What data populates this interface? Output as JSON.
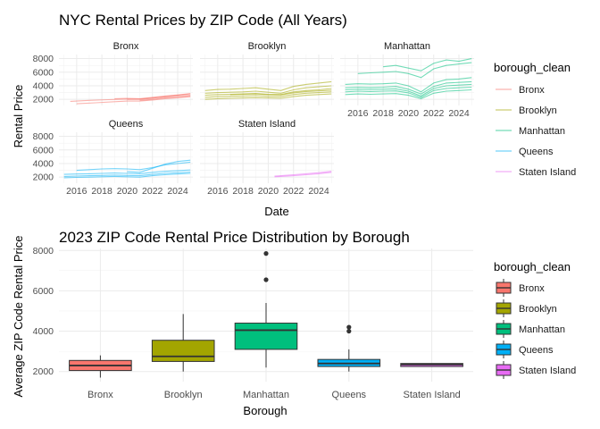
{
  "chart_data": [
    {
      "type": "line",
      "title": "NYC Rental Prices by ZIP Code (All Years)",
      "xlabel": "Date",
      "ylabel": "Rental Price",
      "xlim": [
        2014.6,
        2025.2
      ],
      "ylim": [
        1100,
        8600
      ],
      "x_ticks": [
        2016,
        2018,
        2020,
        2022,
        2024
      ],
      "y_ticks": [
        2000,
        4000,
        6000,
        8000
      ],
      "legend": {
        "title": "borough_clean",
        "position": "right",
        "items": [
          "Bronx",
          "Brooklyn",
          "Manhattan",
          "Queens",
          "Staten Island"
        ]
      },
      "facets": [
        {
          "name": "Bronx",
          "color": "#F8766D",
          "series": [
            {
              "x": [
                2015.5,
                2017,
                2018.5,
                2020,
                2021,
                2022,
                2023,
                2024,
                2025
              ],
              "y": [
                1700,
                1850,
                1950,
                2050,
                2000,
                2150,
                2400,
                2600,
                2800
              ]
            },
            {
              "x": [
                2016,
                2017.5,
                2019,
                2020,
                2021,
                2022,
                2023,
                2024,
                2025
              ],
              "y": [
                1350,
                1500,
                1650,
                1750,
                1750,
                1900,
                2100,
                2250,
                2400
              ]
            },
            {
              "x": [
                2019,
                2020,
                2021,
                2022,
                2023,
                2024,
                2025
              ],
              "y": [
                2100,
                2150,
                2100,
                2300,
                2500,
                2650,
                2850
              ]
            },
            {
              "x": [
                2020,
                2021,
                2022,
                2023,
                2024,
                2025
              ],
              "y": [
                2000,
                2050,
                2200,
                2350,
                2500,
                2600
              ]
            },
            {
              "x": [
                2021,
                2022,
                2023,
                2024,
                2025
              ],
              "y": [
                1850,
                2000,
                2200,
                2300,
                2450
              ]
            }
          ]
        },
        {
          "name": "Brooklyn",
          "color": "#A3A500",
          "series": [
            {
              "x": [
                2015,
                2016,
                2017,
                2018,
                2019,
                2020,
                2021,
                2022,
                2023,
                2024,
                2025
              ],
              "y": [
                2600,
                2700,
                2750,
                2800,
                2850,
                2750,
                2700,
                3100,
                3300,
                3400,
                3600
              ]
            },
            {
              "x": [
                2015,
                2016,
                2017,
                2018,
                2019,
                2020,
                2021,
                2022,
                2023,
                2024,
                2025
              ],
              "y": [
                3300,
                3450,
                3500,
                3600,
                3700,
                3500,
                3300,
                3900,
                4200,
                4400,
                4600
              ]
            },
            {
              "x": [
                2015,
                2016,
                2017,
                2018,
                2019,
                2020,
                2021,
                2022,
                2023,
                2024,
                2025
              ],
              "y": [
                2000,
                2100,
                2150,
                2200,
                2250,
                2200,
                2150,
                2400,
                2600,
                2700,
                2800
              ]
            },
            {
              "x": [
                2015,
                2016,
                2017,
                2018,
                2019,
                2020,
                2021,
                2022,
                2023,
                2024,
                2025
              ],
              "y": [
                2300,
                2400,
                2450,
                2500,
                2550,
                2450,
                2400,
                2700,
                2900,
                3000,
                3100
              ]
            },
            {
              "x": [
                2015,
                2016,
                2017,
                2018,
                2019,
                2020,
                2021,
                2022,
                2023,
                2024,
                2025
              ],
              "y": [
                2900,
                3000,
                3050,
                3100,
                3200,
                3050,
                2900,
                3400,
                3700,
                3850,
                4000
              ]
            },
            {
              "x": [
                2017,
                2018,
                2019,
                2020,
                2021,
                2022,
                2023,
                2024,
                2025
              ],
              "y": [
                2700,
                2750,
                2800,
                2700,
                2650,
                2950,
                3150,
                3250,
                3350
              ]
            }
          ]
        },
        {
          "name": "Manhattan",
          "color": "#00BF7D",
          "series": [
            {
              "x": [
                2015,
                2016,
                2017,
                2018,
                2019,
                2020,
                2021,
                2022,
                2023,
                2024,
                2025
              ],
              "y": [
                3400,
                3500,
                3450,
                3500,
                3550,
                3200,
                2500,
                3600,
                4000,
                4100,
                4200
              ]
            },
            {
              "x": [
                2015,
                2016,
                2017,
                2018,
                2019,
                2020,
                2021,
                2022,
                2023,
                2024,
                2025
              ],
              "y": [
                4200,
                4300,
                4250,
                4300,
                4400,
                4000,
                3100,
                4400,
                4900,
                5000,
                5200
              ]
            },
            {
              "x": [
                2015,
                2016,
                2017,
                2018,
                2019,
                2020,
                2021,
                2022,
                2023,
                2024,
                2025
              ],
              "y": [
                2700,
                2800,
                2750,
                2800,
                2850,
                2600,
                2100,
                2900,
                3200,
                3300,
                3400
              ]
            },
            {
              "x": [
                2015,
                2016,
                2017,
                2018,
                2019,
                2020,
                2021,
                2022,
                2023,
                2024,
                2025
              ],
              "y": [
                3100,
                3200,
                3150,
                3200,
                3250,
                2950,
                2300,
                3300,
                3600,
                3700,
                3800
              ]
            },
            {
              "x": [
                2015,
                2016,
                2017,
                2018,
                2019,
                2020,
                2021,
                2022,
                2023,
                2024,
                2025
              ],
              "y": [
                3700,
                3800,
                3750,
                3800,
                3900,
                3500,
                2800,
                3900,
                4400,
                4500,
                4600
              ]
            },
            {
              "x": [
                2016,
                2017,
                2018,
                2019,
                2020,
                2021,
                2022,
                2023,
                2024,
                2025
              ],
              "y": [
                5800,
                5900,
                6000,
                6100,
                5800,
                5200,
                6500,
                7000,
                7200,
                7400
              ]
            },
            {
              "x": [
                2018,
                2019,
                2020,
                2021,
                2022,
                2023,
                2024,
                2025
              ],
              "y": [
                6800,
                7000,
                6600,
                6200,
                7300,
                7800,
                7600,
                8000
              ]
            }
          ]
        },
        {
          "name": "Queens",
          "color": "#00B0F6",
          "series": [
            {
              "x": [
                2015,
                2016,
                2017,
                2018,
                2019,
                2020,
                2021,
                2022,
                2023,
                2024,
                2025
              ],
              "y": [
                2100,
                2150,
                2200,
                2250,
                2300,
                2250,
                2200,
                2400,
                2550,
                2650,
                2750
              ]
            },
            {
              "x": [
                2015,
                2016,
                2017,
                2018,
                2019,
                2020,
                2021,
                2022,
                2023,
                2024,
                2025
              ],
              "y": [
                2400,
                2450,
                2500,
                2550,
                2600,
                2550,
                2500,
                2700,
                2850,
                2950,
                3050
              ]
            },
            {
              "x": [
                2015,
                2016,
                2017,
                2018,
                2019,
                2020,
                2021,
                2022,
                2023,
                2024,
                2025
              ],
              "y": [
                1900,
                1950,
                2000,
                2050,
                2100,
                2050,
                2000,
                2200,
                2350,
                2450,
                2550
              ]
            },
            {
              "x": [
                2016,
                2017,
                2018,
                2019,
                2020,
                2021,
                2022,
                2023,
                2024,
                2025
              ],
              "y": [
                3000,
                3100,
                3200,
                3250,
                3200,
                3100,
                3400,
                3800,
                4000,
                4200
              ]
            },
            {
              "x": [
                2020,
                2021,
                2022,
                2023,
                2024,
                2025
              ],
              "y": [
                2800,
                2700,
                3300,
                3900,
                4300,
                4500
              ]
            }
          ]
        },
        {
          "name": "Staten Island",
          "color": "#E76BF3",
          "series": [
            {
              "x": [
                2020.5,
                2021,
                2022,
                2023,
                2024,
                2025
              ],
              "y": [
                2050,
                2100,
                2200,
                2350,
                2500,
                2700
              ]
            },
            {
              "x": [
                2020.5,
                2021,
                2022,
                2023,
                2024,
                2025
              ],
              "y": [
                2150,
                2200,
                2350,
                2500,
                2650,
                2850
              ]
            }
          ]
        }
      ]
    },
    {
      "type": "box",
      "title": "2023 ZIP Code Rental Price Distribution by Borough",
      "xlabel": "Borough",
      "ylabel": "Average ZIP Code Rental Price",
      "ylim": [
        1500,
        8100
      ],
      "y_ticks": [
        2000,
        4000,
        6000,
        8000
      ],
      "legend": {
        "title": "borough_clean",
        "position": "right",
        "items": [
          "Bronx",
          "Brooklyn",
          "Manhattan",
          "Queens",
          "Staten Island"
        ]
      },
      "categories": [
        "Bronx",
        "Brooklyn",
        "Manhattan",
        "Queens",
        "Staten Island"
      ],
      "boxes": [
        {
          "name": "Bronx",
          "color": "#F8766D",
          "min": 1700,
          "q1": 2050,
          "median": 2300,
          "q3": 2550,
          "max": 2800,
          "outliers": []
        },
        {
          "name": "Brooklyn",
          "color": "#A3A500",
          "min": 2000,
          "q1": 2500,
          "median": 2750,
          "q3": 3550,
          "max": 4850,
          "outliers": []
        },
        {
          "name": "Manhattan",
          "color": "#00BF7D",
          "min": 2200,
          "q1": 3100,
          "median": 4050,
          "q3": 4400,
          "max": 5400,
          "outliers": [
            6550,
            7850
          ]
        },
        {
          "name": "Queens",
          "color": "#00B0F6",
          "min": 2000,
          "q1": 2250,
          "median": 2400,
          "q3": 2600,
          "max": 3100,
          "outliers": [
            4000,
            4200
          ]
        },
        {
          "name": "Staten Island",
          "color": "#E76BF3",
          "min": 2250,
          "q1": 2250,
          "median": 2350,
          "q3": 2400,
          "max": 2400,
          "outliers": []
        }
      ]
    }
  ]
}
